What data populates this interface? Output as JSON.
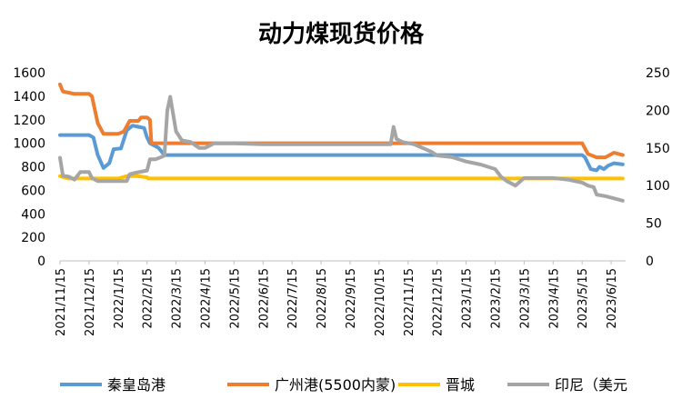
{
  "chart_data": {
    "type": "line",
    "title": "动力煤现货价格",
    "x_ticks": [
      "2021/11/15",
      "2021/12/15",
      "2022/1/15",
      "2022/2/15",
      "2022/3/15",
      "2022/4/15",
      "2022/5/15",
      "2022/6/15",
      "2022/7/15",
      "2022/8/15",
      "2022/9/15",
      "2022/10/15",
      "2022/11/15",
      "2022/12/15",
      "2023/1/15",
      "2023/2/15",
      "2023/3/15",
      "2023/4/15",
      "2023/5/15",
      "2023/6/15"
    ],
    "y_left": {
      "min": 0,
      "max": 1600,
      "ticks": [
        0,
        200,
        400,
        600,
        800,
        1000,
        1200,
        1400,
        1600
      ]
    },
    "y_right": {
      "min": 0,
      "max": 250,
      "ticks": [
        0,
        50,
        100,
        150,
        200,
        250
      ]
    },
    "legend_position": "bottom",
    "series": [
      {
        "name": "秦皇岛港",
        "color": "#5B9BD5",
        "axis": "left",
        "points": [
          [
            0,
            1070
          ],
          [
            1,
            1070
          ],
          [
            1.15,
            1050
          ],
          [
            1.3,
            900
          ],
          [
            1.5,
            790
          ],
          [
            1.7,
            830
          ],
          [
            1.85,
            950
          ],
          [
            2.1,
            955
          ],
          [
            2.3,
            1110
          ],
          [
            2.5,
            1150
          ],
          [
            2.7,
            1140
          ],
          [
            2.9,
            1130
          ],
          [
            3.0,
            1050
          ],
          [
            3.1,
            1000
          ],
          [
            3.4,
            960
          ],
          [
            3.6,
            900
          ],
          [
            4,
            900
          ],
          [
            5,
            900
          ],
          [
            6,
            900
          ],
          [
            7,
            900
          ],
          [
            8,
            900
          ],
          [
            9,
            900
          ],
          [
            10,
            900
          ],
          [
            11,
            900
          ],
          [
            12,
            900
          ],
          [
            13,
            900
          ],
          [
            14,
            900
          ],
          [
            15,
            900
          ],
          [
            16,
            900
          ],
          [
            17,
            900
          ],
          [
            18,
            900
          ],
          [
            18.1,
            880
          ],
          [
            18.3,
            780
          ],
          [
            18.5,
            770
          ],
          [
            18.6,
            800
          ],
          [
            18.75,
            780
          ],
          [
            18.9,
            810
          ],
          [
            19.1,
            830
          ],
          [
            19.4,
            820
          ]
        ]
      },
      {
        "name": "广州港(5500内蒙)",
        "color": "#ED7D31",
        "axis": "left",
        "points": [
          [
            0,
            1500
          ],
          [
            0.1,
            1440
          ],
          [
            0.3,
            1430
          ],
          [
            0.5,
            1420
          ],
          [
            1,
            1420
          ],
          [
            1.1,
            1400
          ],
          [
            1.3,
            1170
          ],
          [
            1.5,
            1080
          ],
          [
            2,
            1080
          ],
          [
            2.2,
            1100
          ],
          [
            2.4,
            1190
          ],
          [
            2.7,
            1190
          ],
          [
            2.8,
            1220
          ],
          [
            3,
            1220
          ],
          [
            3.1,
            1200
          ],
          [
            3.15,
            1000
          ],
          [
            4,
            1000
          ],
          [
            5,
            1000
          ],
          [
            6,
            1000
          ],
          [
            7,
            1000
          ],
          [
            8,
            1000
          ],
          [
            9,
            1000
          ],
          [
            10,
            1000
          ],
          [
            11,
            1000
          ],
          [
            12,
            1000
          ],
          [
            13,
            1000
          ],
          [
            14,
            1000
          ],
          [
            15,
            1000
          ],
          [
            16,
            1000
          ],
          [
            17,
            1000
          ],
          [
            18,
            1000
          ],
          [
            18.2,
            910
          ],
          [
            18.5,
            880
          ],
          [
            18.8,
            880
          ],
          [
            19.1,
            920
          ],
          [
            19.4,
            900
          ]
        ]
      },
      {
        "name": "晋城",
        "color": "#FFC000",
        "axis": "left",
        "points": [
          [
            0,
            720
          ],
          [
            0.3,
            700
          ],
          [
            2,
            700
          ],
          [
            2.3,
            720
          ],
          [
            2.7,
            720
          ],
          [
            3,
            710
          ],
          [
            3.05,
            700
          ],
          [
            19.4,
            700
          ]
        ]
      },
      {
        "name": "印尼（美元",
        "color": "#A5A5A5",
        "axis": "right",
        "points": [
          [
            0,
            137
          ],
          [
            0.1,
            113
          ],
          [
            0.3,
            112
          ],
          [
            0.5,
            108
          ],
          [
            0.7,
            118
          ],
          [
            1,
            118
          ],
          [
            1.1,
            110
          ],
          [
            1.3,
            106
          ],
          [
            2,
            106
          ],
          [
            2.3,
            106
          ],
          [
            2.4,
            115
          ],
          [
            2.6,
            117
          ],
          [
            3,
            120
          ],
          [
            3.1,
            135
          ],
          [
            3.3,
            135
          ],
          [
            3.5,
            138
          ],
          [
            3.6,
            140
          ],
          [
            3.7,
            200
          ],
          [
            3.8,
            218
          ],
          [
            4.0,
            172
          ],
          [
            4.2,
            160
          ],
          [
            4.5,
            158
          ],
          [
            4.8,
            150
          ],
          [
            5,
            150
          ],
          [
            5.3,
            156
          ],
          [
            6,
            156
          ],
          [
            7,
            155
          ],
          [
            8,
            155
          ],
          [
            9,
            155
          ],
          [
            10,
            155
          ],
          [
            11.4,
            155
          ],
          [
            11.5,
            178
          ],
          [
            11.6,
            162
          ],
          [
            11.8,
            158
          ],
          [
            12.2,
            155
          ],
          [
            12.5,
            150
          ],
          [
            12.8,
            145
          ],
          [
            13,
            140
          ],
          [
            13.5,
            138
          ],
          [
            14,
            132
          ],
          [
            14.5,
            128
          ],
          [
            15,
            122
          ],
          [
            15.2,
            112
          ],
          [
            15.4,
            106
          ],
          [
            15.7,
            100
          ],
          [
            16,
            110
          ],
          [
            16.5,
            110
          ],
          [
            17,
            110
          ],
          [
            17.5,
            108
          ],
          [
            18,
            104
          ],
          [
            18.2,
            100
          ],
          [
            18.4,
            98
          ],
          [
            18.5,
            88
          ],
          [
            18.8,
            86
          ],
          [
            19,
            84
          ],
          [
            19.4,
            80
          ]
        ]
      }
    ]
  }
}
